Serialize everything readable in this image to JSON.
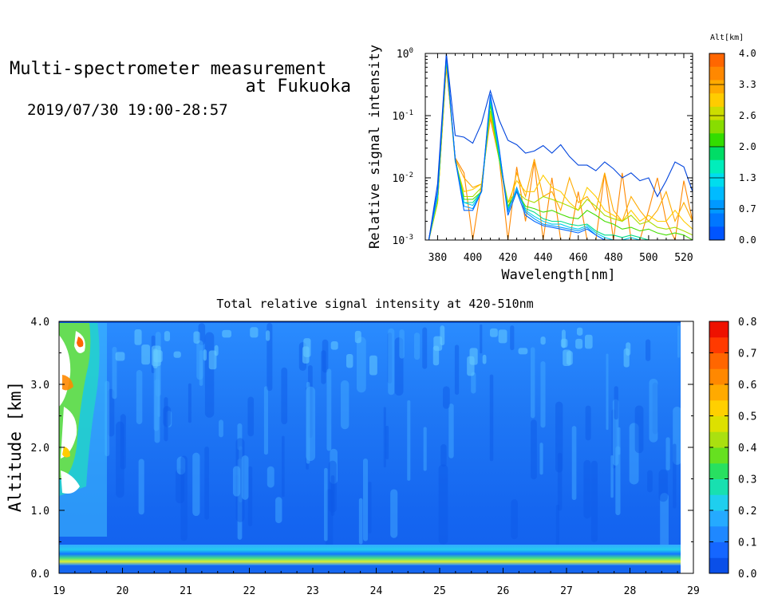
{
  "header": {
    "title_line1": "Multi-spectrometer measurement",
    "title_line2": "at Fukuoka",
    "date_range": "2019/07/30 19:00-28:57"
  },
  "chart_data": [
    {
      "type": "line",
      "id": "spectrum",
      "xlabel": "Wavelength[nm]",
      "ylabel": "Relative signal intensity",
      "xlim": [
        373,
        525
      ],
      "ylim": [
        0.001,
        1
      ],
      "yscale": "log",
      "xticks": [
        380,
        400,
        420,
        440,
        460,
        480,
        500,
        520
      ],
      "yticks": [
        {
          "base": "10",
          "exp": "0",
          "value": 1
        },
        {
          "base": "10",
          "exp": "-1",
          "value": 0.1
        },
        {
          "base": "10",
          "exp": "-2",
          "value": 0.01
        },
        {
          "base": "10",
          "exp": "-3",
          "value": 0.001
        }
      ],
      "colorbar": {
        "title": "Alt[km]",
        "ticks": [
          "4.0",
          "3.3",
          "2.6",
          "2.0",
          "1.3",
          "0.7",
          "0.0"
        ],
        "colors": [
          "#ff6600",
          "#ff8800",
          "#ffaa00",
          "#ffcc00",
          "#ccdd00",
          "#88dd00",
          "#33dd00",
          "#00dd66",
          "#00eebb",
          "#00ddee",
          "#00bbff",
          "#0099ff",
          "#0077ff",
          "#0055ff"
        ]
      },
      "x": [
        375,
        380,
        385,
        390,
        395,
        400,
        405,
        410,
        415,
        420,
        425,
        430,
        435,
        440,
        445,
        450,
        455,
        460,
        465,
        470,
        475,
        480,
        485,
        490,
        495,
        500,
        505,
        510,
        515,
        520,
        525
      ],
      "series": [
        {
          "color": "#0044dd",
          "values": [
            0.001,
            0.008,
            1.0,
            0.048,
            0.045,
            0.036,
            0.075,
            0.25,
            0.085,
            0.04,
            0.034,
            0.025,
            0.027,
            0.033,
            0.025,
            0.034,
            0.022,
            0.016,
            0.016,
            0.013,
            0.018,
            0.014,
            0.01,
            0.012,
            0.009,
            0.01,
            0.005,
            0.009,
            0.018,
            0.015,
            0.006
          ]
        },
        {
          "color": "#0066ff",
          "values": [
            0.001,
            0.006,
            0.95,
            0.02,
            0.003,
            0.003,
            0.006,
            0.22,
            0.03,
            0.0025,
            0.006,
            0.0025,
            0.002,
            0.0017,
            0.0016,
            0.0015,
            0.0014,
            0.0013,
            0.0015,
            0.0012,
            0.001,
            0.001,
            0.001,
            0.001,
            0.001,
            0.001,
            0.001,
            0.001,
            0.001,
            0.001,
            0.001
          ]
        },
        {
          "color": "#0099ff",
          "values": [
            0.001,
            0.006,
            0.9,
            0.02,
            0.0035,
            0.0032,
            0.006,
            0.2,
            0.028,
            0.0028,
            0.007,
            0.0028,
            0.0022,
            0.0018,
            0.0017,
            0.0016,
            0.0015,
            0.0014,
            0.0016,
            0.0012,
            0.001,
            0.001,
            0.001,
            0.001,
            0.001,
            0.001,
            0.001,
            0.001,
            0.001,
            0.001,
            0.001
          ]
        },
        {
          "color": "#00ccee",
          "values": [
            0.001,
            0.005,
            0.88,
            0.019,
            0.004,
            0.0036,
            0.006,
            0.19,
            0.025,
            0.003,
            0.0065,
            0.003,
            0.0024,
            0.002,
            0.0018,
            0.0018,
            0.0016,
            0.0015,
            0.0017,
            0.0013,
            0.0011,
            0.001,
            0.001,
            0.0011,
            0.001,
            0.001,
            0.001,
            0.001,
            0.001,
            0.001,
            0.001
          ]
        },
        {
          "color": "#00dd88",
          "values": [
            0.001,
            0.005,
            0.85,
            0.019,
            0.004,
            0.004,
            0.006,
            0.17,
            0.022,
            0.0032,
            0.006,
            0.0032,
            0.0028,
            0.0022,
            0.002,
            0.002,
            0.0018,
            0.0017,
            0.0018,
            0.0014,
            0.0012,
            0.0012,
            0.0011,
            0.0012,
            0.0011,
            0.001,
            0.001,
            0.001,
            0.001,
            0.001,
            0.001
          ]
        },
        {
          "color": "#44dd00",
          "values": [
            0.001,
            0.005,
            0.8,
            0.02,
            0.0045,
            0.0045,
            0.006,
            0.15,
            0.02,
            0.0035,
            0.006,
            0.0035,
            0.0032,
            0.0028,
            0.003,
            0.0026,
            0.0023,
            0.0022,
            0.003,
            0.0025,
            0.002,
            0.0018,
            0.0015,
            0.0016,
            0.0014,
            0.0015,
            0.0013,
            0.0012,
            0.0013,
            0.0012,
            0.001
          ]
        },
        {
          "color": "#aadd00",
          "values": [
            0.001,
            0.004,
            0.75,
            0.02,
            0.005,
            0.005,
            0.007,
            0.12,
            0.02,
            0.004,
            0.006,
            0.0045,
            0.004,
            0.005,
            0.0045,
            0.004,
            0.0035,
            0.003,
            0.0045,
            0.0035,
            0.0025,
            0.0022,
            0.002,
            0.0025,
            0.0018,
            0.002,
            0.0016,
            0.0015,
            0.0016,
            0.0014,
            0.0012
          ]
        },
        {
          "color": "#ffcc00",
          "values": [
            0.001,
            0.004,
            0.7,
            0.018,
            0.006,
            0.0065,
            0.008,
            0.11,
            0.02,
            0.004,
            0.009,
            0.006,
            0.006,
            0.011,
            0.007,
            0.006,
            0.004,
            0.003,
            0.007,
            0.005,
            0.003,
            0.0025,
            0.002,
            0.003,
            0.002,
            0.0025,
            0.002,
            0.002,
            0.003,
            0.002,
            0.0015
          ]
        },
        {
          "color": "#ffaa00",
          "values": [
            0.001,
            0.004,
            0.65,
            0.02,
            0.01,
            0.007,
            0.008,
            0.1,
            0.02,
            0.003,
            0.012,
            0.005,
            0.02,
            0.005,
            0.006,
            0.003,
            0.01,
            0.004,
            0.005,
            0.003,
            0.012,
            0.003,
            0.002,
            0.005,
            0.003,
            0.002,
            0.003,
            0.006,
            0.002,
            0.004,
            0.002
          ]
        },
        {
          "color": "#ff8800",
          "values": [
            0.001,
            0.004,
            0.6,
            0.021,
            0.012,
            0.001,
            0.008,
            0.09,
            0.02,
            0.001,
            0.015,
            0.002,
            0.018,
            0.001,
            0.01,
            0.001,
            0.001,
            0.006,
            0.001,
            0.001,
            0.012,
            0.001,
            0.012,
            0.001,
            0.001,
            0.003,
            0.01,
            0.002,
            0.001,
            0.009,
            0.002
          ]
        }
      ]
    },
    {
      "type": "heatmap",
      "id": "timeheight",
      "title": "Total relative signal intensity at 420-510nm",
      "xlabel": "",
      "ylabel": "Altitude [km]",
      "xlim": [
        19,
        29
      ],
      "ylim": [
        0,
        4
      ],
      "xticks": [
        "19",
        "20",
        "21",
        "22",
        "23",
        "24",
        "25",
        "26",
        "27",
        "28",
        "29"
      ],
      "yticks": [
        "0.0",
        "1.0",
        "2.0",
        "3.0",
        "4.0"
      ],
      "colorbar": {
        "ticks": [
          "0.8",
          "0.7",
          "0.6",
          "0.5",
          "0.4",
          "0.3",
          "0.2",
          "0.1",
          "0.0"
        ],
        "range": [
          0,
          0.8
        ]
      }
    }
  ]
}
